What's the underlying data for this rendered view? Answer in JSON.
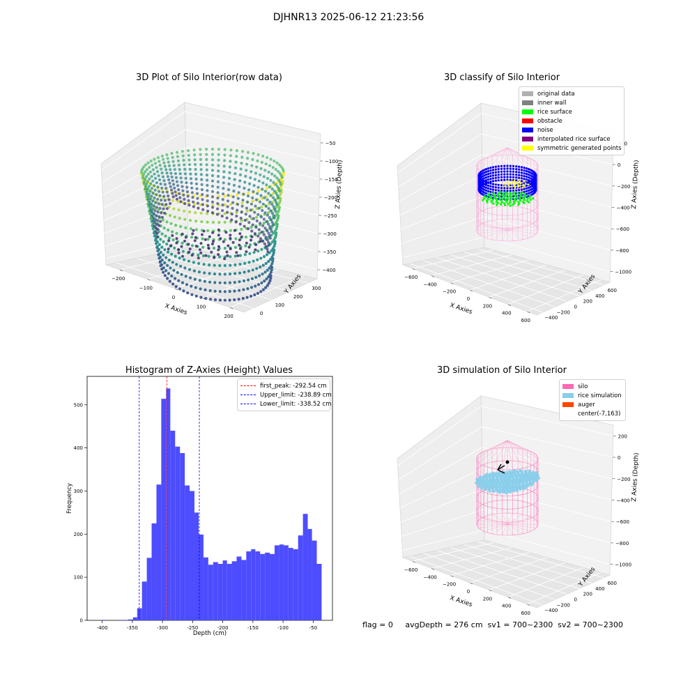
{
  "figure": {
    "suptitle": "DJHNR13 2025-06-12 21:23:56",
    "footer": {
      "flag": "flag = 0",
      "avg_depth": "avgDepth = 276 cm",
      "sv1": "sv1 = 700~2300",
      "sv2": "sv2 = 700~2300"
    }
  },
  "chart_data": [
    {
      "type": "scatter",
      "subtype": "3d-scatter",
      "title": "3D Plot of Silo Interior(row data)",
      "xlabel": "X Axies",
      "ylabel": "Y Axies",
      "zlabel": "Z Axies (Depth)",
      "xticks": [
        "−200",
        "−100",
        "0",
        "100",
        "200"
      ],
      "yticks": [
        "0",
        "100",
        "200",
        "300"
      ],
      "zticks": [
        "−50",
        "−100",
        "−150",
        "−200",
        "−250",
        "−300",
        "−350",
        "−400"
      ],
      "colormap": "viridis",
      "colors": [
        "#440154",
        "#3b528b",
        "#21918c",
        "#5ec962",
        "#fde725"
      ]
    },
    {
      "type": "scatter",
      "subtype": "3d-classified",
      "title": "3D classify of Silo Interior",
      "xlabel": "X Axies",
      "ylabel": "Y Axies",
      "zlabel": "Z Axies (Depth)",
      "xticks": [
        "−600",
        "−400",
        "−200",
        "0",
        "200",
        "400",
        "600"
      ],
      "yticks": [
        "−400",
        "−200",
        "0",
        "200",
        "400",
        "600"
      ],
      "zticks": [
        "200",
        "0",
        "−200",
        "−400",
        "−600",
        "−800",
        "−1000"
      ],
      "legend": [
        {
          "label": "original data",
          "color": "#b0b0b0"
        },
        {
          "label": "inner wall",
          "color": "#808080"
        },
        {
          "label": "rice surface",
          "color": "#00ff00"
        },
        {
          "label": "obstacle",
          "color": "#ff0000"
        },
        {
          "label": "noise",
          "color": "#0000ff"
        },
        {
          "label": "interpolated rice surface",
          "color": "#800080"
        },
        {
          "label": "symmetric generated points",
          "color": "#ffff00"
        }
      ]
    },
    {
      "type": "bar",
      "subtype": "histogram",
      "title": "Histogram of Z-Axies (Height) Values",
      "xlabel": "Depth (cm)",
      "ylabel": "Frequency",
      "xlim": [
        -425,
        -18
      ],
      "ylim": [
        0,
        566
      ],
      "xticks": [
        -400,
        -350,
        -300,
        -250,
        -200,
        -150,
        -100,
        -50
      ],
      "yticks": [
        0,
        100,
        200,
        300,
        400,
        500
      ],
      "bar_color": "#4d4dff",
      "bins": [
        {
          "x0": -402,
          "x1": -398,
          "count": 1
        },
        {
          "x0": -398,
          "x1": -393,
          "count": 1
        },
        {
          "x0": -370,
          "x1": -365,
          "count": 1
        },
        {
          "x0": -365,
          "x1": -361,
          "count": 1
        },
        {
          "x0": -361,
          "x1": -357,
          "count": 1
        },
        {
          "x0": -357,
          "x1": -349,
          "count": 2
        },
        {
          "x0": -349,
          "x1": -342,
          "count": 7
        },
        {
          "x0": -342,
          "x1": -334,
          "count": 28
        },
        {
          "x0": -334,
          "x1": -326,
          "count": 90
        },
        {
          "x0": -326,
          "x1": -318,
          "count": 145
        },
        {
          "x0": -318,
          "x1": -310,
          "count": 225
        },
        {
          "x0": -310,
          "x1": -302,
          "count": 315
        },
        {
          "x0": -302,
          "x1": -294,
          "count": 514
        },
        {
          "x0": -294,
          "x1": -287,
          "count": 538
        },
        {
          "x0": -287,
          "x1": -279,
          "count": 440
        },
        {
          "x0": -279,
          "x1": -271,
          "count": 403
        },
        {
          "x0": -271,
          "x1": -263,
          "count": 388
        },
        {
          "x0": -263,
          "x1": -255,
          "count": 313
        },
        {
          "x0": -255,
          "x1": -247,
          "count": 300
        },
        {
          "x0": -247,
          "x1": -240,
          "count": 250
        },
        {
          "x0": -240,
          "x1": -232,
          "count": 199
        },
        {
          "x0": -232,
          "x1": -224,
          "count": 146
        },
        {
          "x0": -224,
          "x1": -216,
          "count": 129
        },
        {
          "x0": -216,
          "x1": -208,
          "count": 135
        },
        {
          "x0": -208,
          "x1": -200,
          "count": 131
        },
        {
          "x0": -200,
          "x1": -193,
          "count": 139
        },
        {
          "x0": -193,
          "x1": -185,
          "count": 131
        },
        {
          "x0": -185,
          "x1": -177,
          "count": 137
        },
        {
          "x0": -177,
          "x1": -169,
          "count": 148
        },
        {
          "x0": -169,
          "x1": -161,
          "count": 140
        },
        {
          "x0": -161,
          "x1": -153,
          "count": 160
        },
        {
          "x0": -153,
          "x1": -146,
          "count": 165
        },
        {
          "x0": -146,
          "x1": -138,
          "count": 160
        },
        {
          "x0": -138,
          "x1": -130,
          "count": 154
        },
        {
          "x0": -130,
          "x1": -122,
          "count": 157
        },
        {
          "x0": -122,
          "x1": -114,
          "count": 154
        },
        {
          "x0": -114,
          "x1": -106,
          "count": 174
        },
        {
          "x0": -106,
          "x1": -99,
          "count": 176
        },
        {
          "x0": -99,
          "x1": -91,
          "count": 174
        },
        {
          "x0": -91,
          "x1": -83,
          "count": 168
        },
        {
          "x0": -83,
          "x1": -75,
          "count": 165
        },
        {
          "x0": -75,
          "x1": -67,
          "count": 197
        },
        {
          "x0": -67,
          "x1": -59,
          "count": 247
        },
        {
          "x0": -59,
          "x1": -52,
          "count": 212
        },
        {
          "x0": -52,
          "x1": -44,
          "count": 185
        },
        {
          "x0": -44,
          "x1": -36,
          "count": 131
        }
      ],
      "vlines": [
        {
          "label": "first_peak: -292.54 cm",
          "x": -292.54,
          "color": "#ff0000"
        },
        {
          "label": "Upper_limit: -238.89 cm",
          "x": -238.89,
          "color": "#0000ff"
        },
        {
          "label": "Lower_limit: -338.52 cm",
          "x": -338.52,
          "color": "#0000ff"
        }
      ]
    },
    {
      "type": "scatter",
      "subtype": "3d-simulation",
      "title": "3D simulation of Silo Interior",
      "xlabel": "X Axies",
      "ylabel": "Y Axies",
      "zlabel": "Z Axies (Depth)",
      "xticks": [
        "−600",
        "−400",
        "−200",
        "0",
        "200",
        "400",
        "600"
      ],
      "yticks": [
        "−400",
        "−200",
        "0",
        "200",
        "400",
        "600"
      ],
      "zticks": [
        "200",
        "0",
        "−200",
        "−400",
        "−600",
        "−800",
        "−1000"
      ],
      "legend": [
        {
          "label": "silo",
          "color": "#ff69b4"
        },
        {
          "label": "rice simulation",
          "color": "#87ceeb"
        },
        {
          "label": "auger",
          "color": "#ff4500"
        },
        {
          "label": "center(-7,163)",
          "color": ""
        }
      ]
    }
  ]
}
